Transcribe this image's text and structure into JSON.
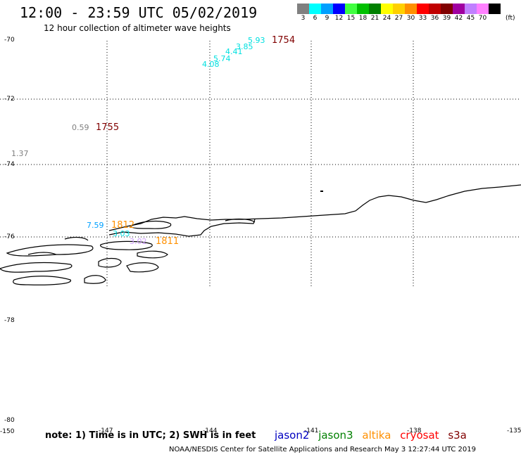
{
  "title": "12:00 - 23:59 UTC 05/02/2019",
  "subtitle": "12 hour collection of altimeter wave heights",
  "color_scale": {
    "unit": "(ft)",
    "bins": [
      {
        "label": "3",
        "color": "#808080"
      },
      {
        "label": "6",
        "color": "#00ffff"
      },
      {
        "label": "9",
        "color": "#00a0ff"
      },
      {
        "label": "12",
        "color": "#0000ff"
      },
      {
        "label": "15",
        "color": "#40ff40"
      },
      {
        "label": "18",
        "color": "#00c000"
      },
      {
        "label": "21",
        "color": "#008000"
      },
      {
        "label": "24",
        "color": "#ffff00"
      },
      {
        "label": "27",
        "color": "#ffd000"
      },
      {
        "label": "30",
        "color": "#ff9000"
      },
      {
        "label": "33",
        "color": "#ff0000"
      },
      {
        "label": "36",
        "color": "#c00000"
      },
      {
        "label": "39",
        "color": "#800000"
      },
      {
        "label": "42",
        "color": "#a000a0"
      },
      {
        "label": "45",
        "color": "#c080ff"
      },
      {
        "label": "70",
        "color": "#ff80ff"
      },
      {
        "label": "",
        "color": "#000000"
      }
    ]
  },
  "axes": {
    "lat_labels": [
      "-70",
      "-72",
      "-74",
      "-76",
      "-78",
      "-80"
    ],
    "lon_labels": [
      "-150",
      "-147",
      "-144",
      "-141",
      "-138",
      "-135"
    ]
  },
  "wave_labels": [
    {
      "text": "5.93",
      "color": "#00e0e0"
    },
    {
      "text": "3.85",
      "color": "#00e0e0"
    },
    {
      "text": "4.41",
      "color": "#00e0e0"
    },
    {
      "text": "5.74",
      "color": "#00e0e0"
    },
    {
      "text": "4.08",
      "color": "#00e0e0"
    },
    {
      "text": "0.59",
      "color": "#808080"
    },
    {
      "text": "1.37",
      "color": "#808080"
    },
    {
      "text": "7.59",
      "color": "#00a0ff"
    },
    {
      "text": "3.03",
      "color": "#00e0e0"
    },
    {
      "text": "3.02",
      "color": "#d0a0ff"
    }
  ],
  "time_labels": [
    {
      "text": "1754",
      "color": "#800000"
    },
    {
      "text": "1755",
      "color": "#800000"
    },
    {
      "text": "1812",
      "color": "#ff9000"
    },
    {
      "text": "1811",
      "color": "#ff9000"
    }
  ],
  "note": "note: 1) Time is in UTC; 2) SWH is in feet",
  "satellites": [
    {
      "name": "jason2",
      "color": "#0000c0"
    },
    {
      "name": "jason3",
      "color": "#008000"
    },
    {
      "name": "altika",
      "color": "#ff9000"
    },
    {
      "name": "cryosat",
      "color": "#ff0000"
    },
    {
      "name": "s3a",
      "color": "#800000"
    }
  ],
  "footer": "NOAA/NESDIS Center for Satellite Applications and Research    May  3 12:27:44 UTC 2019"
}
